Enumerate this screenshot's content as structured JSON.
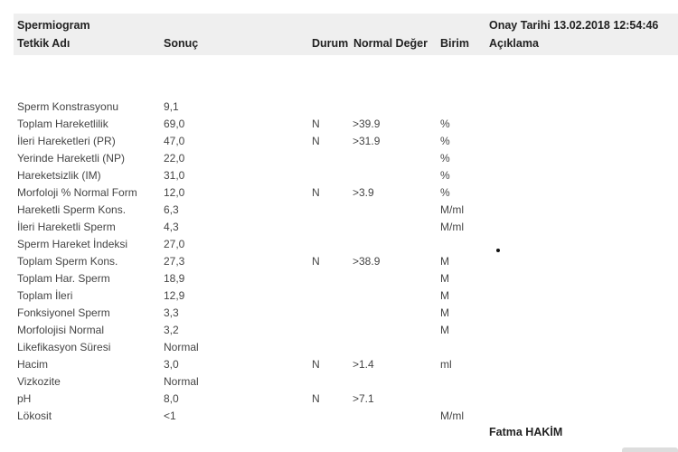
{
  "header": {
    "title": "Spermiogram",
    "approval": "Onay Tarihi 13.02.2018 12:54:46",
    "columns": [
      "Tetkik Adı",
      "Sonuç",
      "Durum",
      "Normal Değer",
      "Birim",
      "Açıklama"
    ]
  },
  "rows": [
    {
      "name": "Sperm Konstrasyonu",
      "result": "9,1",
      "status": "",
      "normal": "",
      "unit": ""
    },
    {
      "name": "Toplam Hareketlilik",
      "result": "69,0",
      "status": "N",
      "normal": ">39.9",
      "unit": "%"
    },
    {
      "name": "İleri Hareketleri (PR)",
      "result": "47,0",
      "status": "N",
      "normal": ">31.9",
      "unit": "%"
    },
    {
      "name": "Yerinde Hareketli (NP)",
      "result": "22,0",
      "status": "",
      "normal": "",
      "unit": "%"
    },
    {
      "name": "Hareketsizlik (IM)",
      "result": "31,0",
      "status": "",
      "normal": "",
      "unit": "%"
    },
    {
      "name": "Morfoloji % Normal Form",
      "result": "12,0",
      "status": "N",
      "normal": ">3.9",
      "unit": "%"
    },
    {
      "name": "Hareketli Sperm Kons.",
      "result": "6,3",
      "status": "",
      "normal": "",
      "unit": "M/ml"
    },
    {
      "name": "İleri Hareketli Sperm",
      "result": "4,3",
      "status": "",
      "normal": "",
      "unit": "M/ml"
    },
    {
      "name": "Sperm Hareket İndeksi",
      "result": "27,0",
      "status": "",
      "normal": "",
      "unit": ""
    },
    {
      "name": "Toplam Sperm Kons.",
      "result": "27,3",
      "status": "N",
      "normal": ">38.9",
      "unit": "M"
    },
    {
      "name": "Toplam Har. Sperm",
      "result": "18,9",
      "status": "",
      "normal": "",
      "unit": "M"
    },
    {
      "name": "Toplam İleri",
      "result": "12,9",
      "status": "",
      "normal": "",
      "unit": "M"
    },
    {
      "name": "Fonksiyonel Sperm",
      "result": "3,3",
      "status": "",
      "normal": "",
      "unit": "M"
    },
    {
      "name": "Morfolojisi Normal",
      "result": "3,2",
      "status": "",
      "normal": "",
      "unit": "M"
    },
    {
      "name": "Likefikasyon Süresi",
      "result": "Normal",
      "status": "",
      "normal": "",
      "unit": ""
    },
    {
      "name": "Hacim",
      "result": "3,0",
      "status": "N",
      "normal": ">1.4",
      "unit": "ml"
    },
    {
      "name": "Vizkozite",
      "result": "Normal",
      "status": "",
      "normal": "",
      "unit": ""
    },
    {
      "name": "pH",
      "result": "8,0",
      "status": "N",
      "normal": ">7.1",
      "unit": ""
    },
    {
      "name": "Lökosit",
      "result": "<1",
      "status": "",
      "normal": "",
      "unit": "M/ml"
    }
  ],
  "signature": "Fatma HAKİM"
}
